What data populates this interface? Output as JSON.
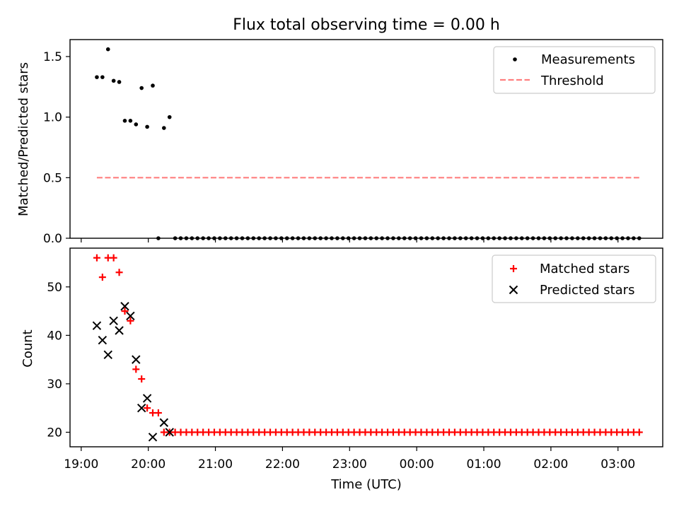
{
  "title": "Flux total observing time = 0.00 h",
  "colors": {
    "measurement": "#000000",
    "threshold": "#ff7f7f",
    "matched": "#ff0000",
    "predicted": "#000000"
  },
  "chart_data": [
    {
      "type": "scatter",
      "panel": "top",
      "title": "Flux total observing time = 0.00 h",
      "xlabel": "",
      "ylabel": "Matched/Predicted stars",
      "xlim": [
        "18:50",
        "03:40"
      ],
      "ylim": [
        0,
        1.64
      ],
      "yticks": [
        0.0,
        0.5,
        1.0,
        1.5
      ],
      "ytick_labels": [
        "0.0",
        "0.5",
        "1.0",
        "1.5"
      ],
      "legend": "top-right",
      "grid": false,
      "series": [
        {
          "name": "Measurements",
          "marker": "dot",
          "x": [
            "19:14",
            "19:19",
            "19:24",
            "19:29",
            "19:34",
            "19:39",
            "19:44",
            "19:49",
            "19:54",
            "19:59",
            "20:04",
            "20:09",
            "20:14",
            "20:19",
            "20:24",
            "20:29",
            "20:34",
            "20:39",
            "20:44",
            "20:49",
            "20:54",
            "20:59",
            "21:04",
            "21:09",
            "21:14",
            "21:19",
            "21:24",
            "21:29",
            "21:34",
            "21:39",
            "21:44",
            "21:49",
            "21:54",
            "21:59",
            "22:04",
            "22:09",
            "22:14",
            "22:19",
            "22:24",
            "22:29",
            "22:34",
            "22:39",
            "22:44",
            "22:49",
            "22:54",
            "22:59",
            "23:04",
            "23:09",
            "23:14",
            "23:19",
            "23:24",
            "23:29",
            "23:34",
            "23:39",
            "23:44",
            "23:49",
            "23:54",
            "23:59",
            "00:04",
            "00:09",
            "00:14",
            "00:19",
            "00:24",
            "00:29",
            "00:34",
            "00:39",
            "00:44",
            "00:49",
            "00:54",
            "00:59",
            "01:04",
            "01:09",
            "01:14",
            "01:19",
            "01:24",
            "01:29",
            "01:34",
            "01:39",
            "01:44",
            "01:49",
            "01:54",
            "01:59",
            "02:04",
            "02:09",
            "02:14",
            "02:19",
            "02:24",
            "02:29",
            "02:34",
            "02:39",
            "02:44",
            "02:49",
            "02:54",
            "02:59",
            "03:04",
            "03:09",
            "03:14",
            "03:19"
          ],
          "y": [
            1.33,
            1.33,
            1.56,
            1.3,
            1.29,
            0.97,
            0.97,
            0.94,
            1.24,
            0.92,
            1.26,
            0.0,
            0.91,
            1.0,
            0,
            0,
            0,
            0,
            0,
            0,
            0,
            0,
            0,
            0,
            0,
            0,
            0,
            0,
            0,
            0,
            0,
            0,
            0,
            0,
            0,
            0,
            0,
            0,
            0,
            0,
            0,
            0,
            0,
            0,
            0,
            0,
            0,
            0,
            0,
            0,
            0,
            0,
            0,
            0,
            0,
            0,
            0,
            0,
            0,
            0,
            0,
            0,
            0,
            0,
            0,
            0,
            0,
            0,
            0,
            0,
            0,
            0,
            0,
            0,
            0,
            0,
            0,
            0,
            0,
            0,
            0,
            0,
            0,
            0,
            0,
            0,
            0,
            0,
            0,
            0,
            0,
            0,
            0,
            0,
            0,
            0,
            0,
            0
          ]
        },
        {
          "name": "Threshold",
          "style": "dashed-line",
          "x": [
            "19:14",
            "03:19"
          ],
          "y": [
            0.5,
            0.5
          ]
        }
      ]
    },
    {
      "type": "scatter",
      "panel": "bottom",
      "xlabel": "Time (UTC)",
      "ylabel": "Count",
      "xlim": [
        "18:50",
        "03:40"
      ],
      "ylim": [
        17,
        58
      ],
      "yticks": [
        20,
        30,
        40,
        50
      ],
      "ytick_labels": [
        "20",
        "30",
        "40",
        "50"
      ],
      "xticks": [
        "19:00",
        "20:00",
        "21:00",
        "22:00",
        "23:00",
        "00:00",
        "01:00",
        "02:00",
        "03:00"
      ],
      "xtick_labels": [
        "19:00",
        "20:00",
        "21:00",
        "22:00",
        "23:00",
        "00:00",
        "01:00",
        "02:00",
        "03:00"
      ],
      "legend": "top-right",
      "grid": false,
      "series": [
        {
          "name": "Matched stars",
          "marker": "plus",
          "x": [
            "19:14",
            "19:19",
            "19:24",
            "19:29",
            "19:34",
            "19:39",
            "19:44",
            "19:49",
            "19:54",
            "19:59",
            "20:04",
            "20:09",
            "20:14",
            "20:19",
            "20:24",
            "20:29",
            "20:34",
            "20:39",
            "20:44",
            "20:49",
            "20:54",
            "20:59",
            "21:04",
            "21:09",
            "21:14",
            "21:19",
            "21:24",
            "21:29",
            "21:34",
            "21:39",
            "21:44",
            "21:49",
            "21:54",
            "21:59",
            "22:04",
            "22:09",
            "22:14",
            "22:19",
            "22:24",
            "22:29",
            "22:34",
            "22:39",
            "22:44",
            "22:49",
            "22:54",
            "22:59",
            "23:04",
            "23:09",
            "23:14",
            "23:19",
            "23:24",
            "23:29",
            "23:34",
            "23:39",
            "23:44",
            "23:49",
            "23:54",
            "23:59",
            "00:04",
            "00:09",
            "00:14",
            "00:19",
            "00:24",
            "00:29",
            "00:34",
            "00:39",
            "00:44",
            "00:49",
            "00:54",
            "00:59",
            "01:04",
            "01:09",
            "01:14",
            "01:19",
            "01:24",
            "01:29",
            "01:34",
            "01:39",
            "01:44",
            "01:49",
            "01:54",
            "01:59",
            "02:04",
            "02:09",
            "02:14",
            "02:19",
            "02:24",
            "02:29",
            "02:34",
            "02:39",
            "02:44",
            "02:49",
            "02:54",
            "02:59",
            "03:04",
            "03:09",
            "03:14",
            "03:19"
          ],
          "y": [
            56,
            52,
            56,
            56,
            53,
            45,
            43,
            33,
            31,
            25,
            24,
            24,
            20,
            20,
            20,
            20,
            20,
            20,
            20,
            20,
            20,
            20,
            20,
            20,
            20,
            20,
            20,
            20,
            20,
            20,
            20,
            20,
            20,
            20,
            20,
            20,
            20,
            20,
            20,
            20,
            20,
            20,
            20,
            20,
            20,
            20,
            20,
            20,
            20,
            20,
            20,
            20,
            20,
            20,
            20,
            20,
            20,
            20,
            20,
            20,
            20,
            20,
            20,
            20,
            20,
            20,
            20,
            20,
            20,
            20,
            20,
            20,
            20,
            20,
            20,
            20,
            20,
            20,
            20,
            20,
            20,
            20,
            20,
            20,
            20,
            20,
            20,
            20,
            20,
            20,
            20,
            20,
            20,
            20,
            20,
            20,
            20,
            20
          ]
        },
        {
          "name": "Predicted stars",
          "marker": "x",
          "x": [
            "19:14",
            "19:19",
            "19:24",
            "19:29",
            "19:34",
            "19:39",
            "19:44",
            "19:49",
            "19:54",
            "19:59",
            "20:04",
            "20:14",
            "20:19"
          ],
          "y": [
            42,
            39,
            36,
            43,
            41,
            46,
            44,
            35,
            25,
            27,
            19,
            22,
            20
          ]
        }
      ]
    }
  ]
}
